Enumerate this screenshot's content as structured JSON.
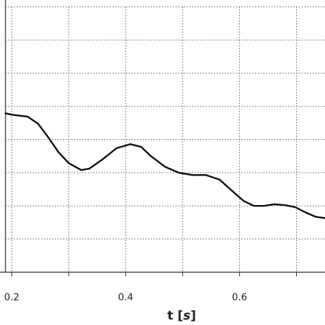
{
  "chart_data": {
    "type": "line",
    "xlabel_parts": [
      "t [",
      "s",
      "]"
    ],
    "x": [
      0.189,
      0.2,
      0.228,
      0.246,
      0.264,
      0.282,
      0.3,
      0.322,
      0.336,
      0.36,
      0.384,
      0.408,
      0.427,
      0.445,
      0.469,
      0.493,
      0.517,
      0.541,
      0.565,
      0.589,
      0.607,
      0.625,
      0.643,
      0.661,
      0.68,
      0.698,
      0.716,
      0.734,
      0.75
    ],
    "series": [
      {
        "color": "#111111",
        "values": [
          4.79,
          4.75,
          4.69,
          4.48,
          4.07,
          3.62,
          3.29,
          3.08,
          3.12,
          3.41,
          3.74,
          3.86,
          3.78,
          3.49,
          3.18,
          3.0,
          2.93,
          2.93,
          2.79,
          2.42,
          2.15,
          2.0,
          2.0,
          2.05,
          2.02,
          1.96,
          1.8,
          1.67,
          1.63
        ]
      }
    ],
    "xlim": [
      0.189,
      0.75
    ],
    "xticks": [
      0.2,
      0.4,
      0.6
    ],
    "xminorticks": [
      0.3,
      0.5,
      0.7
    ],
    "ylim": [
      0,
      8
    ],
    "yticks": [
      0,
      1,
      2,
      3,
      4,
      5,
      6,
      7,
      8
    ],
    "grid": true
  }
}
